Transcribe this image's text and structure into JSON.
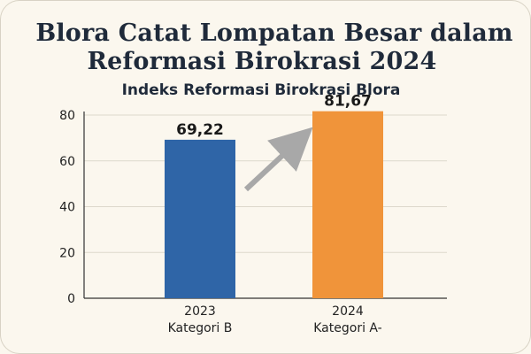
{
  "header": {
    "title_line1": "Blora Catat Lompatan Besar  dalam",
    "title_line2": "Reformasi Birokrasi 2024"
  },
  "chart_data": {
    "type": "bar",
    "title": "Indeks Reformasi Birokrasi Blora",
    "xlabel": "",
    "ylabel": "",
    "ylim": [
      0,
      80
    ],
    "yticks": [
      0,
      20,
      40,
      60,
      80
    ],
    "grid": true,
    "categories": [
      "2023",
      "2024"
    ],
    "category_sublabels": [
      "Kategori B",
      "Kategori A-"
    ],
    "values": [
      69.22,
      81.67
    ],
    "value_labels": [
      "69,22",
      "81,67"
    ],
    "colors": [
      "#2f65a7",
      "#f0943a"
    ],
    "annotations": [
      "arrow-up-right"
    ]
  }
}
